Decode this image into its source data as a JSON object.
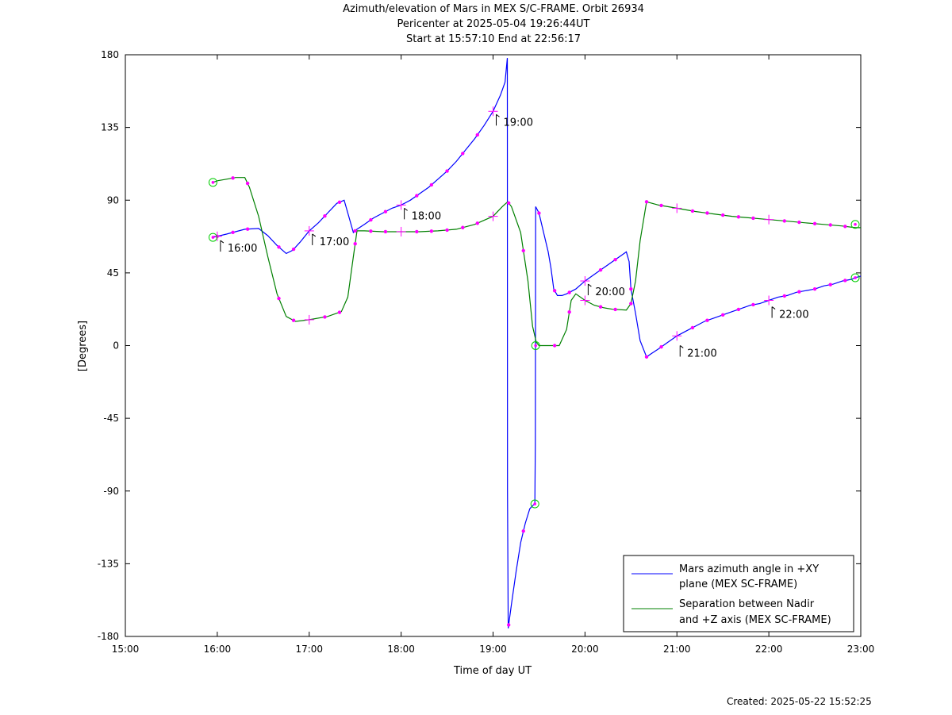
{
  "title_lines": [
    "Azimuth/elevation of Mars in MEX S/C-FRAME.  Orbit 26934",
    "Pericenter at 2025-05-04 19:26:44UT",
    "Start at 15:57:10 End at 22:56:17"
  ],
  "created": "Created: 2025-05-22 15:52:25",
  "colors": {
    "azimuth": "#0000ff",
    "separation": "#008000",
    "marker": "#ff00ff",
    "endpoint": "#00cc00"
  },
  "chart_data": {
    "type": "line",
    "xlabel": "Time of day UT",
    "ylabel": "[Degrees]",
    "xlim": [
      15.0,
      23.0
    ],
    "ylim": [
      -180,
      180
    ],
    "x_ticks": [
      {
        "v": 15,
        "label": "15:00"
      },
      {
        "v": 16,
        "label": "16:00"
      },
      {
        "v": 17,
        "label": "17:00"
      },
      {
        "v": 18,
        "label": "18:00"
      },
      {
        "v": 19,
        "label": "19:00"
      },
      {
        "v": 20,
        "label": "20:00"
      },
      {
        "v": 21,
        "label": "21:00"
      },
      {
        "v": 22,
        "label": "22:00"
      },
      {
        "v": 23,
        "label": "23:00"
      }
    ],
    "y_ticks": [
      {
        "v": 180,
        "label": "180"
      },
      {
        "v": 135,
        "label": "135"
      },
      {
        "v": 90,
        "label": "90"
      },
      {
        "v": 45,
        "label": "45"
      },
      {
        "v": 0,
        "label": "0"
      },
      {
        "v": -45,
        "label": "-45"
      },
      {
        "v": -90,
        "label": "-90"
      },
      {
        "v": -135,
        "label": "-135"
      },
      {
        "v": -180,
        "label": "-180"
      }
    ],
    "grid": false,
    "legend_position": "bottom-right",
    "series": [
      {
        "name": "Mars azimuth angle in +XY plane (MEX SC-FRAME)",
        "legend_lines": [
          "Mars azimuth angle in +XY",
          "plane (MEX SC-FRAME)"
        ],
        "color": "#0000ff",
        "segments": [
          [
            [
              15.953,
              67
            ],
            [
              16.1,
              69
            ],
            [
              16.3,
              72
            ],
            [
              16.45,
              72.5
            ],
            [
              16.55,
              68
            ],
            [
              16.65,
              62
            ],
            [
              16.75,
              57
            ],
            [
              16.82,
              59
            ],
            [
              16.9,
              64
            ],
            [
              17.0,
              71
            ],
            [
              17.1,
              76
            ],
            [
              17.2,
              82
            ],
            [
              17.3,
              88
            ],
            [
              17.38,
              90
            ],
            [
              17.43,
              80
            ],
            [
              17.48,
              70
            ],
            [
              17.52,
              72
            ],
            [
              17.6,
              75
            ],
            [
              17.7,
              79
            ],
            [
              17.8,
              82
            ],
            [
              17.9,
              85
            ],
            [
              18.0,
              87
            ],
            [
              18.1,
              90
            ],
            [
              18.2,
              94
            ],
            [
              18.3,
              98
            ],
            [
              18.4,
              103
            ],
            [
              18.5,
              108
            ],
            [
              18.6,
              114
            ],
            [
              18.7,
              121
            ],
            [
              18.8,
              128
            ],
            [
              18.9,
              136
            ],
            [
              19.0,
              145
            ],
            [
              19.08,
              155
            ],
            [
              19.13,
              163
            ],
            [
              19.155,
              178
            ],
            [
              19.157,
              -90
            ],
            [
              19.165,
              -175
            ],
            [
              19.2,
              -160
            ],
            [
              19.25,
              -140
            ],
            [
              19.3,
              -122
            ],
            [
              19.35,
              -110
            ],
            [
              19.4,
              -101
            ],
            [
              19.45,
              -98
            ],
            [
              19.455,
              -97
            ],
            [
              19.46,
              -60
            ],
            [
              19.463,
              86
            ]
          ],
          [
            [
              19.463,
              86
            ],
            [
              19.5,
              82
            ],
            [
              19.55,
              70
            ],
            [
              19.6,
              58
            ],
            [
              19.63,
              48
            ],
            [
              19.66,
              35
            ],
            [
              19.7,
              31
            ],
            [
              19.75,
              31
            ],
            [
              19.8,
              32
            ],
            [
              19.9,
              35
            ],
            [
              20.0,
              40
            ],
            [
              20.1,
              44
            ],
            [
              20.2,
              48
            ],
            [
              20.3,
              52
            ],
            [
              20.4,
              56
            ],
            [
              20.45,
              58
            ],
            [
              20.48,
              52
            ],
            [
              20.5,
              35
            ],
            [
              20.55,
              20
            ],
            [
              20.6,
              3
            ],
            [
              20.67,
              -7
            ],
            [
              20.72,
              -5
            ],
            [
              20.8,
              -2
            ],
            [
              20.9,
              2
            ],
            [
              21.0,
              6
            ],
            [
              21.1,
              9
            ],
            [
              21.2,
              12
            ],
            [
              21.3,
              15
            ],
            [
              21.4,
              17
            ],
            [
              21.5,
              19
            ],
            [
              21.6,
              21
            ],
            [
              21.7,
              23
            ],
            [
              21.8,
              25
            ],
            [
              21.9,
              26
            ],
            [
              22.0,
              28
            ],
            [
              22.1,
              30
            ],
            [
              22.2,
              31
            ],
            [
              22.3,
              33
            ],
            [
              22.4,
              34
            ],
            [
              22.5,
              35
            ],
            [
              22.6,
              37
            ],
            [
              22.7,
              38
            ],
            [
              22.8,
              40
            ],
            [
              22.9,
              41
            ],
            [
              22.94,
              42
            ],
            [
              23.0,
              43
            ]
          ]
        ],
        "markers": [
          16.0,
          16.17,
          16.33,
          16.67,
          16.83,
          17.17,
          17.33,
          17.5,
          17.67,
          17.83,
          18.17,
          18.33,
          18.5,
          18.67,
          18.83,
          19.17,
          19.33,
          19.5,
          19.67,
          19.83,
          20.17,
          20.33,
          20.5,
          20.67,
          20.83,
          21.17,
          21.33,
          21.5,
          21.67,
          21.83,
          22.17,
          22.33,
          22.5,
          22.67,
          22.83
        ],
        "hour_marks": [
          16,
          17,
          18,
          19,
          20,
          21,
          22
        ]
      },
      {
        "name": "Separation between Nadir and +Z axis (MEX SC-FRAME)",
        "legend_lines": [
          "Separation between Nadir",
          "and +Z axis (MEX SC-FRAME)"
        ],
        "color": "#008000",
        "segments": [
          [
            [
              15.953,
              101
            ],
            [
              16.0,
              102
            ],
            [
              16.1,
              103
            ],
            [
              16.2,
              104
            ],
            [
              16.3,
              104
            ],
            [
              16.35,
              98
            ],
            [
              16.45,
              80
            ],
            [
              16.55,
              55
            ],
            [
              16.65,
              32
            ],
            [
              16.75,
              18
            ],
            [
              16.85,
              15
            ],
            [
              17.0,
              16
            ],
            [
              17.2,
              18
            ],
            [
              17.35,
              21
            ],
            [
              17.42,
              30
            ],
            [
              17.48,
              55
            ],
            [
              17.52,
              71
            ],
            [
              17.6,
              71
            ],
            [
              17.8,
              70.5
            ],
            [
              18.0,
              70.5
            ],
            [
              18.2,
              70.5
            ],
            [
              18.4,
              71
            ],
            [
              18.6,
              72
            ],
            [
              18.8,
              75
            ],
            [
              19.0,
              80
            ],
            [
              19.1,
              86
            ],
            [
              19.16,
              89
            ],
            [
              19.2,
              86
            ],
            [
              19.3,
              70
            ],
            [
              19.38,
              40
            ],
            [
              19.43,
              12
            ],
            [
              19.47,
              2
            ],
            [
              19.5,
              0
            ],
            [
              19.6,
              0
            ],
            [
              19.72,
              0
            ],
            [
              19.8,
              10
            ],
            [
              19.85,
              28
            ],
            [
              19.9,
              32
            ],
            [
              20.0,
              28
            ],
            [
              20.1,
              25
            ],
            [
              20.2,
              23.5
            ],
            [
              20.3,
              22.5
            ],
            [
              20.45,
              22
            ],
            [
              20.5,
              26
            ],
            [
              20.55,
              40
            ],
            [
              20.6,
              65
            ],
            [
              20.67,
              89
            ],
            [
              20.8,
              87
            ],
            [
              21.0,
              85
            ],
            [
              21.2,
              83
            ],
            [
              21.4,
              81.5
            ],
            [
              21.6,
              80
            ],
            [
              21.8,
              79
            ],
            [
              22.0,
              78
            ],
            [
              22.2,
              77
            ],
            [
              22.4,
              76
            ],
            [
              22.6,
              75
            ],
            [
              22.8,
              74
            ],
            [
              22.94,
              73
            ],
            [
              23.0,
              73
            ]
          ]
        ],
        "markers": [
          16.17,
          16.33,
          16.67,
          16.83,
          17.17,
          17.33,
          17.5,
          17.67,
          17.83,
          18.17,
          18.33,
          18.5,
          18.67,
          18.83,
          19.17,
          19.33,
          19.67,
          19.83,
          20.17,
          20.33,
          20.5,
          20.67,
          20.83,
          21.17,
          21.33,
          21.5,
          21.67,
          21.83,
          22.17,
          22.33,
          22.5,
          22.67,
          22.83
        ],
        "hour_marks": [
          17,
          18,
          19,
          20,
          21,
          22
        ]
      }
    ],
    "endpoints": [
      {
        "x": 15.953,
        "y": 67
      },
      {
        "x": 15.953,
        "y": 101
      },
      {
        "x": 19.463,
        "y": 0
      },
      {
        "x": 19.455,
        "y": -98
      },
      {
        "x": 22.94,
        "y": 42
      },
      {
        "x": 22.94,
        "y": 75
      }
    ],
    "hour_labels": [
      {
        "text": "16:00",
        "x": 16.0,
        "y": 67
      },
      {
        "text": "17:00",
        "x": 17.0,
        "y": 71
      },
      {
        "text": "18:00",
        "x": 18.0,
        "y": 87
      },
      {
        "text": "19:00",
        "x": 19.0,
        "y": 145
      },
      {
        "text": "20:00",
        "x": 20.0,
        "y": 40
      },
      {
        "text": "21:00",
        "x": 21.0,
        "y": 2
      },
      {
        "text": "22:00",
        "x": 22.0,
        "y": 26
      }
    ]
  }
}
